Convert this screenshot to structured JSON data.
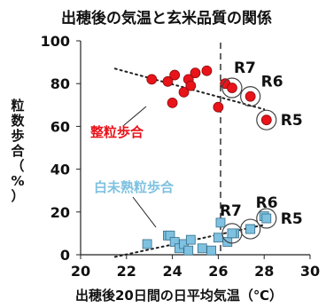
{
  "chart_data": {
    "type": "scatter",
    "title": "出穂後の気温と玄米品質の関係",
    "xlabel": "出穂後20日間の日平均気温（℃）",
    "ylabel": [
      "粒",
      "数",
      "歩",
      "合",
      "（",
      "%",
      "）"
    ],
    "xlim": [
      20,
      30
    ],
    "ylim": [
      0,
      100
    ],
    "xticks": [
      "20",
      "22",
      "24",
      "26",
      "28",
      "30"
    ],
    "yticks": [
      "0",
      "20",
      "40",
      "60",
      "80",
      "100"
    ],
    "reference_line_x": 26.1,
    "colors": {
      "seiryu": "#e8141a",
      "shiromijuku": "#7ec1e0",
      "trend": "#222222"
    },
    "series": [
      {
        "name": "整粒歩合",
        "marker": "circle",
        "color": "#e8141a",
        "x": [
          23.1,
          23.8,
          24.0,
          24.1,
          24.5,
          24.7,
          24.8,
          25.0,
          25.5,
          26.0,
          26.3
        ],
        "y": [
          82,
          81,
          71,
          84,
          76,
          82,
          79,
          85,
          86,
          69,
          80
        ],
        "trend": {
          "x0": 21.5,
          "y0": 87,
          "x1": 28.0,
          "y1": 68
        }
      },
      {
        "name": "白未熟粒歩合",
        "marker": "square",
        "color": "#7ec1e0",
        "x": [
          22.9,
          23.8,
          23.9,
          24.1,
          24.3,
          24.5,
          24.7,
          24.8,
          25.3,
          25.7,
          26.0,
          26.1,
          26.4,
          26.7,
          27.4,
          28.0
        ],
        "y": [
          5,
          9,
          9,
          6,
          3,
          5,
          2,
          7,
          3,
          2,
          8,
          15,
          6,
          10,
          12,
          18
        ],
        "trend": {
          "x0": 21.5,
          "y0": -1,
          "x1": 28.0,
          "y1": 14
        }
      }
    ],
    "annotations": [
      {
        "label": "R7",
        "series": "整粒歩合",
        "x": 26.6,
        "y": 78
      },
      {
        "label": "R6",
        "series": "整粒歩合",
        "x": 27.4,
        "y": 74
      },
      {
        "label": "R5",
        "series": "整粒歩合",
        "x": 28.1,
        "y": 63
      },
      {
        "label": "R7",
        "series": "白未熟粒歩合",
        "x": 26.6,
        "y": 10
      },
      {
        "label": "R6",
        "series": "白未熟粒歩合",
        "x": 27.4,
        "y": 12
      },
      {
        "label": "R5",
        "series": "白未熟粒歩合",
        "x": 28.1,
        "y": 17
      }
    ]
  }
}
